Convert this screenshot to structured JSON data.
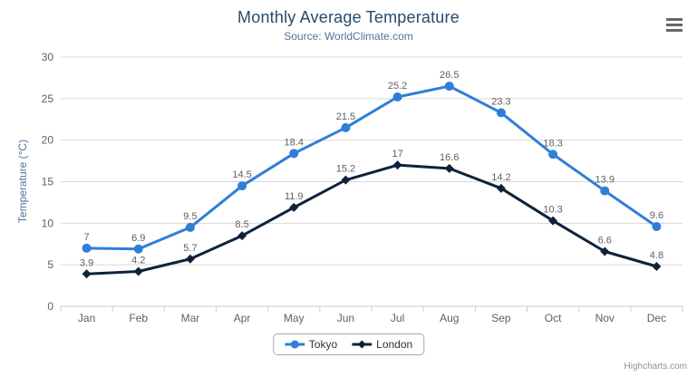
{
  "header": {
    "title": "Monthly Average Temperature",
    "subtitle": "Source: WorldClimate.com"
  },
  "credit_label": "Highcharts.com",
  "context_menu": {
    "icon": "hamburger-icon"
  },
  "chart_data": {
    "type": "line",
    "title": "Monthly Average Temperature",
    "subtitle": "Source: WorldClimate.com",
    "categories": [
      "Jan",
      "Feb",
      "Mar",
      "Apr",
      "May",
      "Jun",
      "Jul",
      "Aug",
      "Sep",
      "Oct",
      "Nov",
      "Dec"
    ],
    "series": [
      {
        "name": "Tokyo",
        "color": "#2f7ed8",
        "marker": "circle",
        "values": [
          7,
          6.9,
          9.5,
          14.5,
          18.4,
          21.5,
          25.2,
          26.5,
          23.3,
          18.3,
          13.9,
          9.6
        ]
      },
      {
        "name": "London",
        "color": "#0d233a",
        "marker": "diamond",
        "values": [
          3.9,
          4.2,
          5.7,
          8.5,
          11.9,
          15.2,
          17,
          16.6,
          14.2,
          10.3,
          6.6,
          4.8
        ]
      }
    ],
    "xlabel": "",
    "ylabel": "Temperature (°C)",
    "ylim": [
      0,
      30
    ],
    "yticks": [
      0,
      5,
      10,
      15,
      20,
      25,
      30
    ],
    "grid": true,
    "data_labels": true,
    "legend_position": "bottom",
    "colors": {
      "title": "#274b6d",
      "subtitle": "#4d759e",
      "axis_title": "#4d759e",
      "axis_label": "#606060",
      "data_label": "#606060",
      "grid": "#d8d8d8",
      "axis_line": "#c0d0e0",
      "legend_border": "#a6a6a6",
      "legend_text": "#333333",
      "credit": "#909090",
      "menu_icon": "#666666"
    }
  }
}
